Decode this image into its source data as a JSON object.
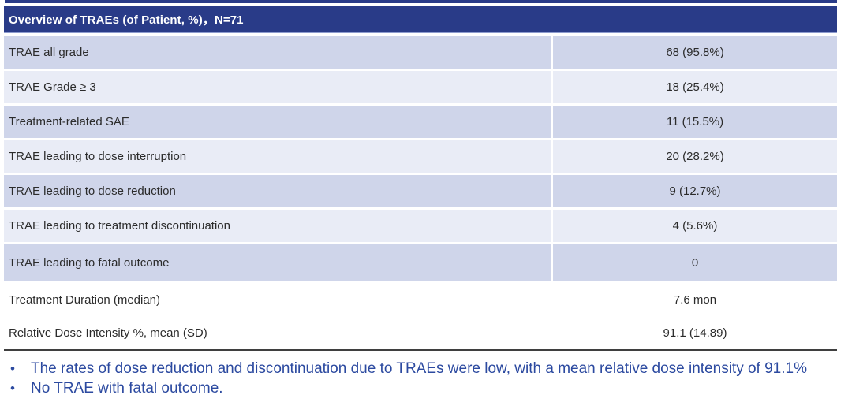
{
  "chart_data": {
    "type": "table",
    "title": "Overview of TRAEs (of Patient, %)，N=71",
    "n_patients": 71,
    "rows": [
      {
        "label": "TRAE all grade",
        "value": "68 (95.8%)",
        "count": 68,
        "percent": 95.8
      },
      {
        "label": "TRAE Grade ≥ 3",
        "value": "18 (25.4%)",
        "count": 18,
        "percent": 25.4
      },
      {
        "label": "Treatment-related SAE",
        "value": "11 (15.5%)",
        "count": 11,
        "percent": 15.5
      },
      {
        "label": "TRAE leading to dose interruption",
        "value": "20 (28.2%)",
        "count": 20,
        "percent": 28.2
      },
      {
        "label": "TRAE leading to dose reduction",
        "value": "9 (12.7%)",
        "count": 9,
        "percent": 12.7
      },
      {
        "label": "TRAE leading to treatment discontinuation",
        "value": "4 (5.6%)",
        "count": 4,
        "percent": 5.6
      },
      {
        "label": "TRAE leading to fatal outcome",
        "value": "0",
        "count": 0
      }
    ],
    "summary_rows": [
      {
        "label": "Treatment Duration (median)",
        "value": "7.6 mon",
        "median_months": 7.6
      },
      {
        "label": "Relative Dose Intensity %, mean (SD)",
        "value": "91.1 (14.89)",
        "mean": 91.1,
        "sd": 14.89
      }
    ],
    "annotations": [
      "The rates of dose reduction and discontinuation due to TRAEs were low, with a mean relative dose intensity of 91.1%",
      "No TRAE with fatal outcome."
    ]
  },
  "colors": {
    "header_bg": "#293b88",
    "header_border": "#8d9bce",
    "row_dark": "#cfd5ea",
    "row_light": "#e9ecf6",
    "label_text": "#2b2b2b",
    "rule": "#3f3f3f",
    "bullet_text": "#2c4aa0"
  }
}
